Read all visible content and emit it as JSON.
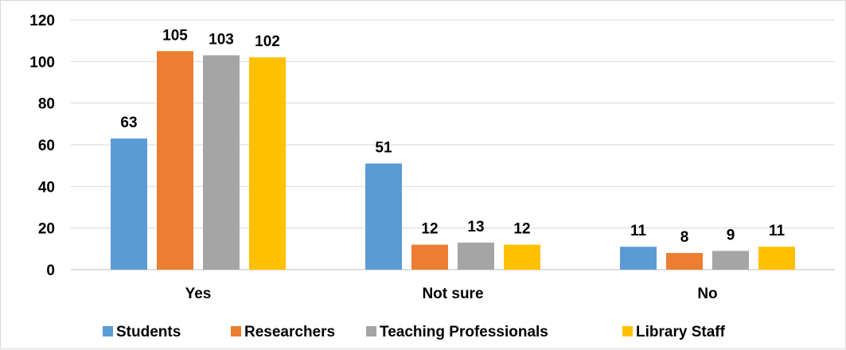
{
  "chart_data": {
    "type": "bar",
    "title": "",
    "xlabel": "",
    "ylabel": "",
    "categories": [
      "Yes",
      "Not sure",
      "No"
    ],
    "series": [
      {
        "name": "Students",
        "color": "#5b9bd5",
        "values": [
          63,
          51,
          11
        ]
      },
      {
        "name": "Researchers",
        "color": "#ed7d31",
        "values": [
          105,
          12,
          8
        ]
      },
      {
        "name": "Teaching Professionals",
        "color": "#a5a5a5",
        "values": [
          103,
          13,
          9
        ]
      },
      {
        "name": "Library Staff",
        "color": "#ffc000",
        "values": [
          102,
          12,
          11
        ]
      }
    ],
    "ylim": [
      0,
      120
    ],
    "yticks": [
      0,
      20,
      40,
      60,
      80,
      100,
      120
    ],
    "grid": true,
    "data_labels": true,
    "legend_position": "bottom"
  }
}
